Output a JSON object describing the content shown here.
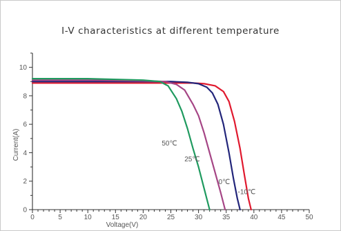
{
  "chart_data": {
    "type": "line",
    "title": "I-V characteristics at different temperature",
    "xlabel": "Voltage(V)",
    "ylabel": "Current(A)",
    "xlim": [
      0,
      50
    ],
    "ylim": [
      0,
      11
    ],
    "xticks": [
      0,
      5,
      10,
      15,
      20,
      25,
      30,
      35,
      40,
      45,
      50
    ],
    "yticks": [
      0,
      2,
      4,
      6,
      8,
      10
    ],
    "grid": false,
    "legend": "none",
    "series": [
      {
        "name": "-10℃",
        "color": "#e0192e",
        "x": [
          0,
          10,
          20,
          25,
          29,
          31,
          33,
          34.5,
          35.5,
          36.5,
          37.5,
          38.3,
          39.0,
          39.5
        ],
        "y": [
          8.9,
          8.9,
          8.9,
          8.9,
          8.9,
          8.85,
          8.7,
          8.3,
          7.6,
          6.2,
          4.3,
          2.4,
          0.8,
          0
        ]
      },
      {
        "name": "0℃",
        "color": "#22257a",
        "x": [
          0,
          10,
          20,
          25,
          28,
          30,
          31.5,
          32.5,
          33.5,
          34.5,
          35.5,
          36.3,
          37.0,
          37.5
        ],
        "y": [
          9.0,
          9.0,
          9.0,
          9.0,
          8.95,
          8.85,
          8.6,
          8.2,
          7.4,
          6.0,
          4.0,
          2.2,
          0.8,
          0
        ]
      },
      {
        "name": "25℃",
        "color": "#a54585",
        "x": [
          0,
          10,
          20,
          24,
          26,
          27.5,
          29,
          30,
          31,
          32,
          33,
          34,
          34.8
        ],
        "y": [
          9.1,
          9.1,
          9.05,
          9.0,
          8.8,
          8.4,
          7.4,
          6.6,
          5.4,
          4.0,
          2.6,
          1.2,
          0
        ]
      },
      {
        "name": "50℃",
        "color": "#1f9a5f",
        "x": [
          0,
          10,
          20,
          23,
          24.5,
          26,
          27,
          28,
          29,
          30,
          31,
          32
        ],
        "y": [
          9.2,
          9.2,
          9.1,
          9.0,
          8.7,
          7.8,
          6.9,
          5.7,
          4.3,
          3.0,
          1.5,
          0
        ]
      }
    ]
  }
}
